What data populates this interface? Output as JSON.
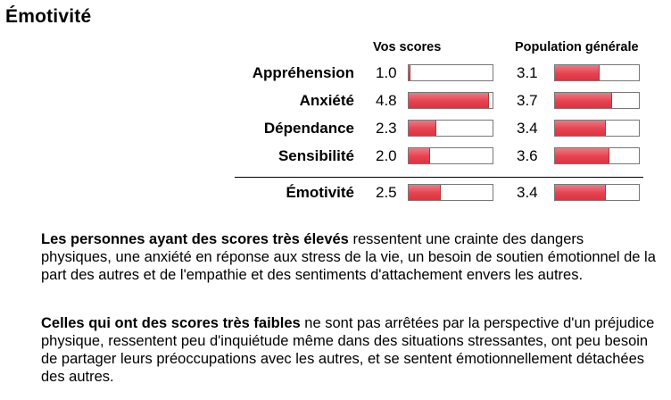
{
  "page": {
    "title": "Émotivité"
  },
  "headers": {
    "your_scores": "Vos scores",
    "population": "Population générale"
  },
  "scale_max": 5,
  "rows": [
    {
      "label": "Appréhension",
      "you": "1.0",
      "pop": "3.1",
      "you_fraction": 0.02,
      "pop_fraction": 0.53
    },
    {
      "label": "Anxiété",
      "you": "4.8",
      "pop": "3.7",
      "you_fraction": 0.96,
      "pop_fraction": 0.68
    },
    {
      "label": "Dépendance",
      "you": "2.3",
      "pop": "3.4",
      "you_fraction": 0.33,
      "pop_fraction": 0.61
    },
    {
      "label": "Sensibilité",
      "you": "2.0",
      "pop": "3.6",
      "you_fraction": 0.25,
      "pop_fraction": 0.65
    }
  ],
  "total": {
    "label": "Émotivité",
    "you": "2.5",
    "pop": "3.4",
    "you_fraction": 0.38,
    "pop_fraction": 0.61
  },
  "colors": {
    "bar_fill": "#e8414f",
    "bar_border": "#777777"
  },
  "paragraphs": {
    "high": {
      "lead": "Les personnes ayant des scores très élevés",
      "text": " ressentent une crainte des dangers physiques, une anxiété en réponse aux stress de la vie, un besoin de soutien émotionnel de la part des autres et de l'empathie et des sentiments d'attachement envers les autres."
    },
    "low": {
      "lead": "Celles qui ont des scores très faibles",
      "text": " ne sont pas arrêtées par la perspective d'un préjudice physique, ressentent peu d'inquiétude même dans des situations stressantes, ont peu besoin de partager leurs préoccupations avec les autres, et se sentent émotionnellement détachées des autres."
    }
  }
}
